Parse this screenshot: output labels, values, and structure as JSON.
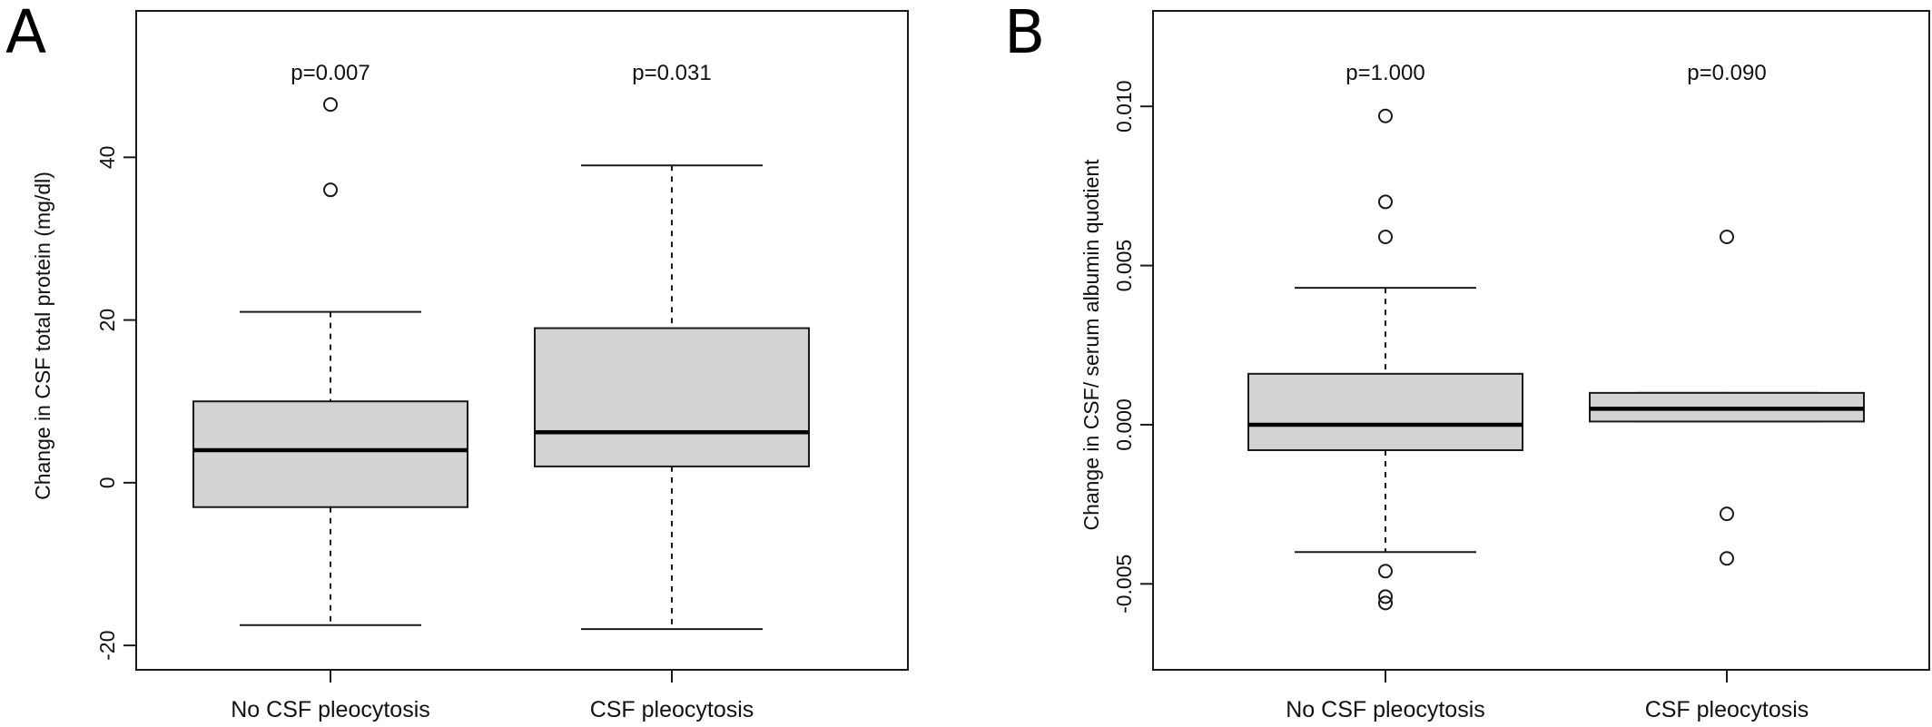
{
  "chart_data": [
    {
      "type": "boxplot",
      "panel": "A",
      "title": "",
      "xlabel": "",
      "ylabel": "Change in CSF total protein (mg/dl)",
      "ylim": [
        -23,
        58
      ],
      "yticks": [
        -20,
        0,
        20,
        40
      ],
      "ytick_labels": [
        "-20",
        "0",
        "20",
        "40"
      ],
      "categories": [
        "No CSF pleocytosis",
        "CSF pleocytosis"
      ],
      "pvalues": [
        "p=0.007",
        "p=0.031"
      ],
      "boxes": [
        {
          "category": "No CSF pleocytosis",
          "whisker_low": -17.5,
          "q1": -3,
          "median": 4,
          "q3": 10,
          "whisker_high": 21,
          "outliers": [
            36,
            46.5
          ]
        },
        {
          "category": "CSF pleocytosis",
          "whisker_low": -18,
          "q1": 2,
          "median": 6.2,
          "q3": 19,
          "whisker_high": 39,
          "outliers": []
        }
      ],
      "grid": false
    },
    {
      "type": "boxplot",
      "panel": "B",
      "title": "",
      "xlabel": "",
      "ylabel": "Change in CSF/ serum albumin quotient",
      "ylim": [
        -0.0077,
        0.013
      ],
      "yticks": [
        -0.005,
        0.0,
        0.005,
        0.01
      ],
      "ytick_labels": [
        "-0.005",
        "0.000",
        "0.005",
        "0.010"
      ],
      "categories": [
        "No CSF pleocytosis",
        "CSF pleocytosis"
      ],
      "pvalues": [
        "p=1.000",
        "p=0.090"
      ],
      "boxes": [
        {
          "category": "No CSF pleocytosis",
          "whisker_low": -0.004,
          "q1": -0.0008,
          "median": 0.0,
          "q3": 0.0016,
          "whisker_high": 0.0043,
          "outliers": [
            -0.0046,
            -0.0054,
            -0.0056,
            0.0059,
            0.007,
            0.0097
          ]
        },
        {
          "category": "CSF pleocytosis",
          "whisker_low": 0.0001,
          "q1": 0.0001,
          "median": 0.0005,
          "q3": 0.001,
          "whisker_high": 0.001,
          "outliers": [
            -0.0028,
            -0.0042,
            0.0059
          ]
        }
      ],
      "grid": false
    }
  ],
  "colors": {
    "box_fill": "#d3d3d3",
    "stroke": "#1a1a1a"
  }
}
